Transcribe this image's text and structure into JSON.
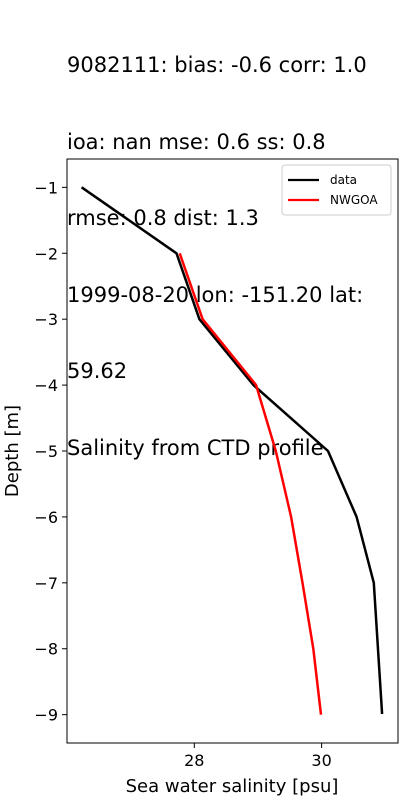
{
  "chart_data": {
    "type": "line",
    "title_lines": [
      "9082111: bias: -0.6  corr: 1.0",
      "ioa: nan  mse: 0.6  ss: 0.8",
      "rmse: 0.8  dist: 1.3",
      "1999-08-20 lon: -151.20 lat:",
      "59.62",
      "Salinity from CTD profile"
    ],
    "xlabel": "Sea water salinity [psu]",
    "ylabel": "Depth [m]",
    "xlim": [
      26.0,
      31.2
    ],
    "ylim": [
      -9.43,
      -0.57
    ],
    "xticks": [
      28,
      30
    ],
    "xtick_labels": [
      "28",
      "30"
    ],
    "yticks": [
      -1,
      -2,
      -3,
      -4,
      -5,
      -6,
      -7,
      -8,
      -9
    ],
    "ytick_labels": [
      "−1",
      "−2",
      "−3",
      "−4",
      "−5",
      "−6",
      "−7",
      "−8",
      "−9"
    ],
    "grid": false,
    "legend_position": "top-right",
    "series": [
      {
        "name": "data",
        "color": "#000000",
        "x": [
          26.23,
          27.72,
          28.08,
          28.93,
          30.1,
          30.55,
          30.82,
          30.95
        ],
        "y": [
          -1,
          -2,
          -3,
          -4,
          -5,
          -6,
          -7,
          -8.99
        ]
      },
      {
        "name": "NWGOA",
        "color": "#ff0000",
        "x": [
          27.77,
          28.13,
          28.97,
          29.28,
          29.52,
          29.7,
          29.87,
          29.99
        ],
        "y": [
          -2,
          -3,
          -4,
          -5,
          -6,
          -7,
          -8,
          -9
        ]
      }
    ]
  }
}
